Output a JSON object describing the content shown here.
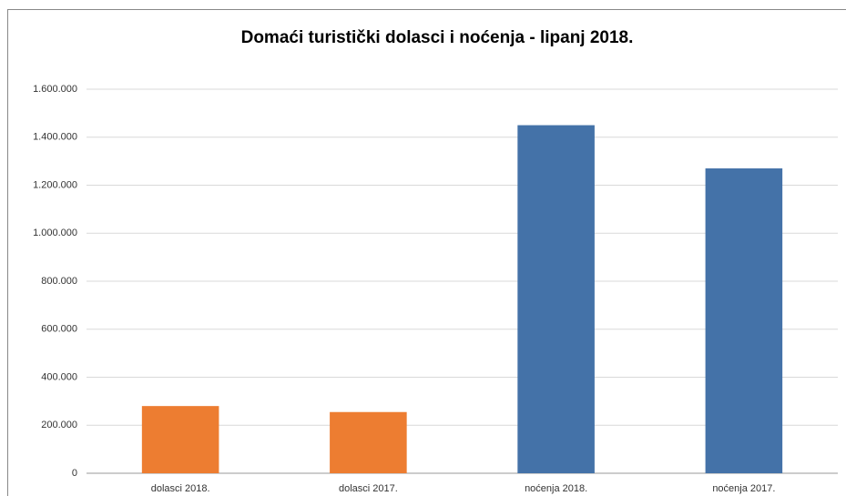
{
  "chart_data": {
    "type": "bar",
    "title": "Domaći turistički dolasci i noćenja - lipanj 2018.",
    "categories": [
      "dolasci 2018.",
      "dolasci 2017.",
      "noćenja 2018.",
      "noćenja 2017."
    ],
    "values": [
      280000,
      255000,
      1450000,
      1270000
    ],
    "colors": [
      "#ed7d31",
      "#ed7d31",
      "#4472a8",
      "#4472a8"
    ],
    "ylim": [
      0,
      1600000
    ],
    "yticks": [
      0,
      {
        "value": 200000,
        "label": "200.000"
      },
      {
        "value": 400000,
        "label": "400.000"
      },
      {
        "value": 600000,
        "label": "600.000"
      },
      {
        "value": 800000,
        "label": "800.000"
      },
      {
        "value": 1000000,
        "label": "1.000.000"
      },
      {
        "value": 1200000,
        "label": "1.200.000"
      },
      {
        "value": 1400000,
        "label": "1.400.000"
      },
      {
        "value": 1600000,
        "label": "1.600.000"
      }
    ],
    "grid": true
  }
}
